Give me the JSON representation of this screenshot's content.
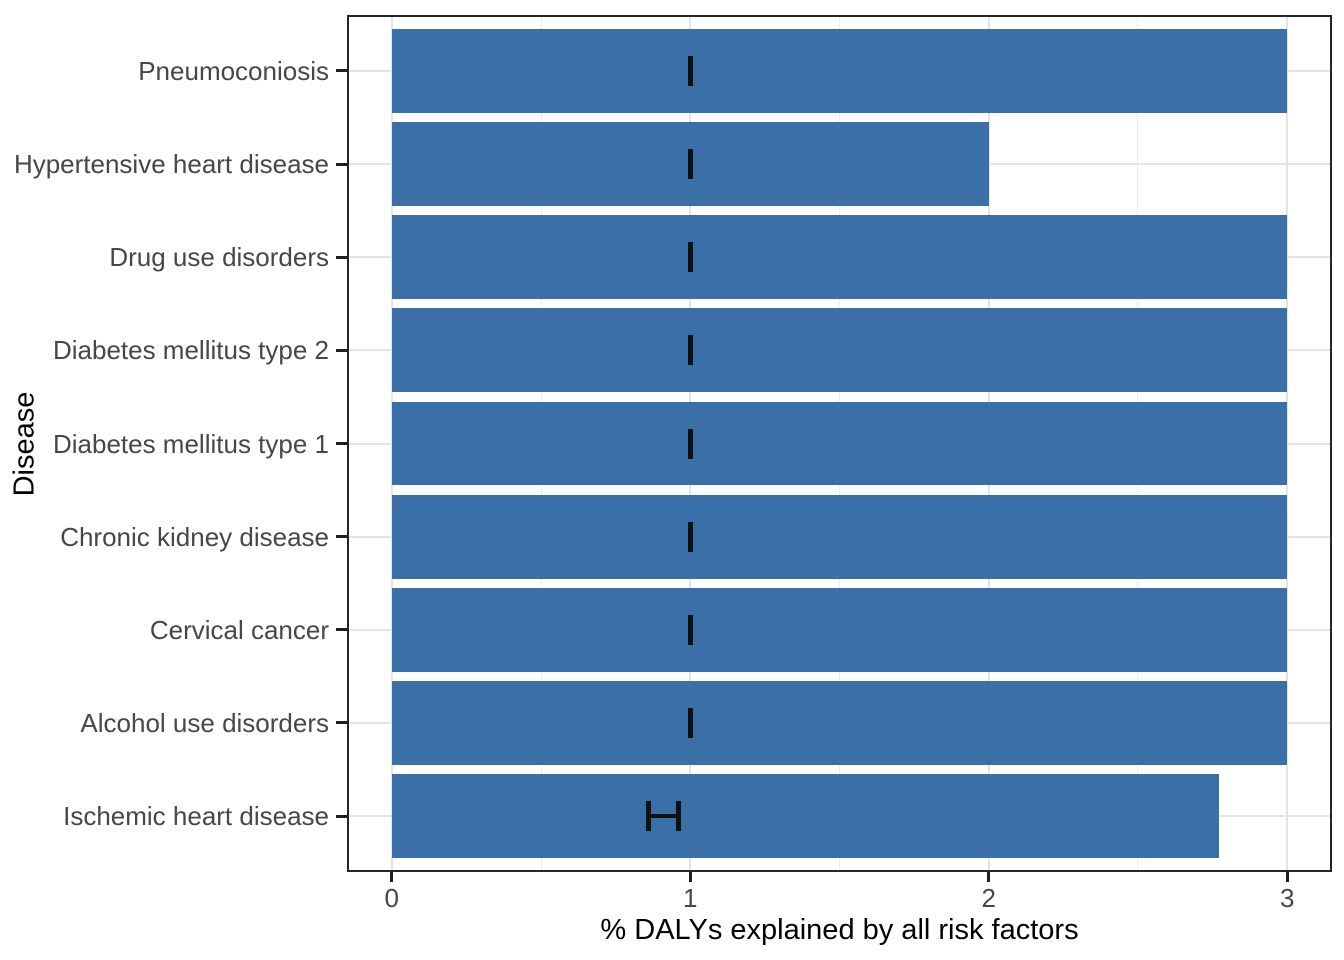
{
  "chart_data": {
    "type": "bar",
    "orientation": "horizontal",
    "title": "",
    "xlabel": "% DALYs explained by all risk factors",
    "ylabel": "Disease",
    "categories": [
      "Pneumoconiosis",
      "Hypertensive heart disease",
      "Drug use disorders",
      "Diabetes mellitus type 2",
      "Diabetes mellitus type 1",
      "Chronic kidney disease",
      "Cervical cancer",
      "Alcohol use disorders",
      "Ischemic heart disease"
    ],
    "values": [
      3.0,
      2.0,
      3.0,
      3.0,
      3.0,
      3.0,
      3.0,
      3.0,
      2.77
    ],
    "error_bars": [
      {
        "low": 1.0,
        "high": 1.0
      },
      {
        "low": 1.0,
        "high": 1.0
      },
      {
        "low": 1.0,
        "high": 1.0
      },
      {
        "low": 1.0,
        "high": 1.0
      },
      {
        "low": 1.0,
        "high": 1.0
      },
      {
        "low": 1.0,
        "high": 1.0
      },
      {
        "low": 1.0,
        "high": 1.0
      },
      {
        "low": 1.0,
        "high": 1.0
      },
      {
        "low": 0.86,
        "high": 0.96
      }
    ],
    "xlim": [
      0,
      3
    ],
    "x_ticks": [
      "0",
      "1",
      "2",
      "3"
    ],
    "x_tick_values": [
      0,
      1,
      2,
      3
    ],
    "x_minor_gridlines": [
      0.5,
      1.5,
      2.5
    ],
    "grid": "major and minor vertical, major horizontal",
    "legend": false,
    "panel_border": true,
    "colors": {
      "bar_fill": "#3A6FA8",
      "grid_major": "#E4E4E4",
      "grid_minor": "#EDEDED",
      "panel_border": "#262626",
      "tick_mark": "#1F1F1F",
      "tick_label": "#474747",
      "error_bar": "#111111",
      "background": "#FFFFFF"
    }
  }
}
